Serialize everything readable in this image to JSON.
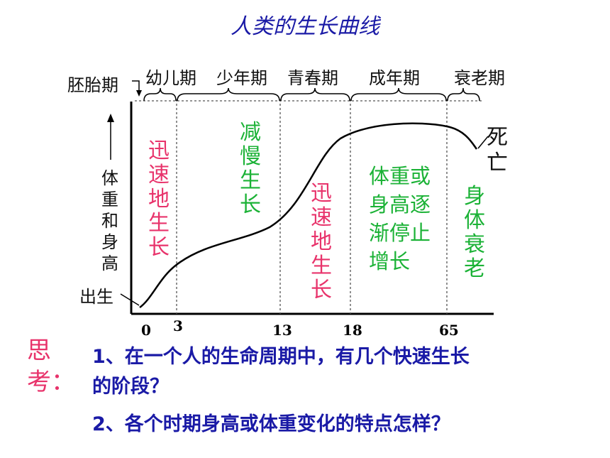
{
  "title": "人类的生长曲线",
  "stages": {
    "embryo": "胚胎期",
    "infancy": "幼儿期",
    "childhood": "少年期",
    "puberty": "青春期",
    "adulthood": "成年期",
    "old_age": "衰老期"
  },
  "y_axis_label": "体重和身高",
  "birth_label": "出生",
  "death_label": "死亡",
  "annotations": {
    "rapid_1": "迅速地生长",
    "slow": "减慢生长",
    "rapid_2": "迅速地生长",
    "stop": [
      "体重或",
      "身高逐",
      "渐停止",
      "增长"
    ],
    "decline": "身体衰老"
  },
  "x_ticks": [
    "0",
    "3",
    "13",
    "18",
    "65"
  ],
  "think_label": "思考：",
  "questions": [
    "1、在一个人的生命周期中，有几个快速生长",
    "的阶段？",
    "2、各个时期身高或体重变化的特点怎样？"
  ],
  "colors": {
    "title": "#1a1aa6",
    "rapid": "#e8336b",
    "slow": "#1bb236",
    "question": "#1a1aa6"
  }
}
